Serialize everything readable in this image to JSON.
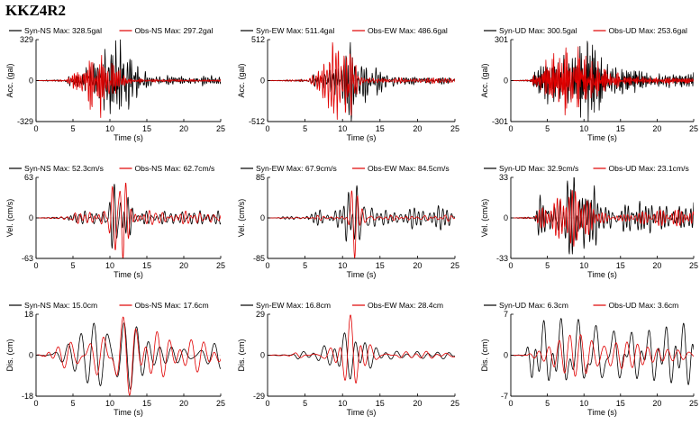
{
  "title": "KKZ4R2",
  "x_label": "Time (s)",
  "x_ticks": [
    "0",
    "5",
    "10",
    "15",
    "20",
    "25"
  ],
  "rows": [
    {
      "y_label": "Acc. (gal)",
      "unit": "gal"
    },
    {
      "y_label": "Vel. (cm/s)",
      "unit": "cm/s"
    },
    {
      "y_label": "Dis. (cm)",
      "unit": "cm"
    }
  ],
  "colors": {
    "syn": "#000000",
    "obs": "#e00000"
  },
  "chart_data": [
    {
      "type": "line",
      "row": 0,
      "col": 0,
      "component": "NS",
      "ylabel": "Acc. (gal)",
      "xlabel": "Time (s)",
      "xlim": [
        0,
        25
      ],
      "ylim": [
        -329,
        329
      ],
      "yticks": [
        "329",
        "0",
        "-329"
      ],
      "series": [
        {
          "name": "Syn-NS",
          "max_text": "Max: 328.5gal",
          "max": 328.5,
          "shape": "acc",
          "onset": 3.5,
          "peak_t": 10.5,
          "spread": 3.0,
          "decay": 1.0,
          "tail": 0.08,
          "freq": 3.2
        },
        {
          "name": "Obs-NS",
          "max_text": "Max: 297.2gal",
          "max": 297.2,
          "shape": "acc",
          "onset": 3.5,
          "peak_t": 8.5,
          "spread": 2.6,
          "decay": 1.0,
          "tail": 0.05,
          "freq": 3.6
        }
      ]
    },
    {
      "type": "line",
      "row": 0,
      "col": 1,
      "component": "EW",
      "ylabel": "Acc. (gal)",
      "xlabel": "Time (s)",
      "xlim": [
        0,
        25
      ],
      "ylim": [
        -512,
        512
      ],
      "yticks": [
        "512",
        "0",
        "-512"
      ],
      "series": [
        {
          "name": "Syn-EW",
          "max_text": "Max: 511.4gal",
          "max": 511.4,
          "shape": "acc",
          "onset": 5.0,
          "peak_t": 11.5,
          "spread": 2.6,
          "decay": 1.0,
          "tail": 0.1,
          "freq": 3.0
        },
        {
          "name": "Obs-EW",
          "max_text": "Max: 486.6gal",
          "max": 486.6,
          "shape": "acc",
          "onset": 5.0,
          "peak_t": 9.5,
          "spread": 2.0,
          "decay": 1.0,
          "tail": 0.06,
          "freq": 3.5
        }
      ]
    },
    {
      "type": "line",
      "row": 0,
      "col": 2,
      "component": "UD",
      "ylabel": "Acc. (gal)",
      "xlabel": "Time (s)",
      "xlim": [
        0,
        25
      ],
      "ylim": [
        -301,
        301
      ],
      "yticks": [
        "301",
        "0",
        "-301"
      ],
      "series": [
        {
          "name": "Syn-UD",
          "max_text": "Max: 300.5gal",
          "max": 300.5,
          "shape": "acc",
          "onset": 2.5,
          "peak_t": 9.5,
          "spread": 5.0,
          "decay": 1.0,
          "tail": 0.2,
          "freq": 4.0
        },
        {
          "name": "Obs-UD",
          "max_text": "Max: 253.6gal",
          "max": 253.6,
          "shape": "acc",
          "onset": 2.5,
          "peak_t": 8.0,
          "spread": 4.0,
          "decay": 1.0,
          "tail": 0.1,
          "freq": 4.5
        }
      ]
    },
    {
      "type": "line",
      "row": 1,
      "col": 0,
      "component": "NS",
      "ylabel": "Vel. (cm/s)",
      "xlabel": "Time (s)",
      "xlim": [
        0,
        25
      ],
      "ylim": [
        -63,
        63
      ],
      "yticks": [
        "63",
        "0",
        "-63"
      ],
      "series": [
        {
          "name": "Syn-NS",
          "max_text": "Max: 52.3cm/s",
          "max": 52.3,
          "shape": "vel",
          "onset": 4.0,
          "peak_t": 11.3,
          "spread": 1.2,
          "decay": 0.8,
          "tail": 0.15,
          "freq": 1.4
        },
        {
          "name": "Obs-NS",
          "max_text": "Max: 62.7cm/s",
          "max": 62.7,
          "shape": "vel",
          "onset": 4.0,
          "peak_t": 11.0,
          "spread": 1.4,
          "decay": 0.8,
          "tail": 0.12,
          "freq": 1.2
        }
      ]
    },
    {
      "type": "line",
      "row": 1,
      "col": 1,
      "component": "EW",
      "ylabel": "Vel. (cm/s)",
      "xlabel": "Time (s)",
      "xlim": [
        0,
        25
      ],
      "ylim": [
        -85,
        85
      ],
      "yticks": [
        "85",
        "0",
        "-85"
      ],
      "series": [
        {
          "name": "Syn-EW",
          "max_text": "Max: 67.9cm/s",
          "max": 67.9,
          "shape": "vel",
          "onset": 5.5,
          "peak_t": 12.0,
          "spread": 1.6,
          "decay": 0.8,
          "tail": 0.12,
          "freq": 1.3
        },
        {
          "name": "Obs-EW",
          "max_text": "Max: 84.5cm/s",
          "max": 84.5,
          "shape": "vel",
          "onset": 5.5,
          "peak_t": 11.8,
          "spread": 0.9,
          "decay": 0.8,
          "tail": 0.08,
          "freq": 1.1
        }
      ]
    },
    {
      "type": "line",
      "row": 1,
      "col": 2,
      "component": "UD",
      "ylabel": "Vel. (cm/s)",
      "xlabel": "Time (s)",
      "xlim": [
        0,
        25
      ],
      "ylim": [
        -33,
        33
      ],
      "yticks": [
        "33",
        "0",
        "-33"
      ],
      "series": [
        {
          "name": "Syn-UD",
          "max_text": "Max: 32.9cm/s",
          "max": 32.9,
          "shape": "vel",
          "onset": 3.0,
          "peak_t": 8.5,
          "spread": 3.0,
          "decay": 0.9,
          "tail": 0.35,
          "freq": 1.8
        },
        {
          "name": "Obs-UD",
          "max_text": "Max: 23.1cm/s",
          "max": 23.1,
          "shape": "vel",
          "onset": 3.0,
          "peak_t": 9.0,
          "spread": 3.0,
          "decay": 0.9,
          "tail": 0.2,
          "freq": 2.0
        }
      ]
    },
    {
      "type": "line",
      "row": 2,
      "col": 0,
      "component": "NS",
      "ylabel": "Dis. (cm)",
      "xlabel": "Time (s)",
      "xlim": [
        0,
        25
      ],
      "ylim": [
        -18,
        18
      ],
      "yticks": [
        "18",
        "0",
        "-18"
      ],
      "series": [
        {
          "name": "Syn-NS",
          "max_text": "Max: 15.0cm",
          "max": 15.0,
          "shape": "dis",
          "onset": 1.0,
          "peak_t": 11.0,
          "spread": 3.5,
          "decay": 0.8,
          "tail": 0.2,
          "freq": 0.55
        },
        {
          "name": "Obs-NS",
          "max_text": "Max: 17.6cm",
          "max": 17.6,
          "shape": "dis",
          "onset": 1.0,
          "peak_t": 11.5,
          "spread": 4.0,
          "decay": 0.8,
          "tail": 0.3,
          "freq": 0.5
        }
      ]
    },
    {
      "type": "line",
      "row": 2,
      "col": 1,
      "component": "EW",
      "ylabel": "Dis. (cm)",
      "xlabel": "Time (s)",
      "xlim": [
        0,
        25
      ],
      "ylim": [
        -29,
        29
      ],
      "yticks": [
        "29",
        "0",
        "-29"
      ],
      "series": [
        {
          "name": "Syn-EW",
          "max_text": "Max: 16.8cm",
          "max": 16.8,
          "shape": "dis",
          "onset": 3.0,
          "peak_t": 11.0,
          "spread": 3.0,
          "decay": 0.8,
          "tail": 0.15,
          "freq": 0.6
        },
        {
          "name": "Obs-EW",
          "max_text": "Max: 28.4cm",
          "max": 28.4,
          "shape": "dis",
          "onset": 3.0,
          "peak_t": 11.3,
          "spread": 2.2,
          "decay": 0.8,
          "tail": 0.1,
          "freq": 0.55
        }
      ]
    },
    {
      "type": "line",
      "row": 2,
      "col": 2,
      "component": "UD",
      "ylabel": "Dis. (cm)",
      "xlabel": "Time (s)",
      "xlim": [
        0,
        25
      ],
      "ylim": [
        -7,
        7
      ],
      "yticks": [
        "7",
        "0",
        "-7"
      ],
      "series": [
        {
          "name": "Syn-UD",
          "max_text": "Max: 6.3cm",
          "max": 6.3,
          "shape": "dis",
          "onset": 2.0,
          "peak_t": 10.0,
          "spread": 5.0,
          "decay": 0.9,
          "tail": 0.6,
          "freq": 0.7
        },
        {
          "name": "Obs-UD",
          "max_text": "Max: 3.6cm",
          "max": 3.6,
          "shape": "dis",
          "onset": 2.0,
          "peak_t": 11.0,
          "spread": 5.0,
          "decay": 0.9,
          "tail": 0.5,
          "freq": 0.6
        }
      ]
    }
  ]
}
